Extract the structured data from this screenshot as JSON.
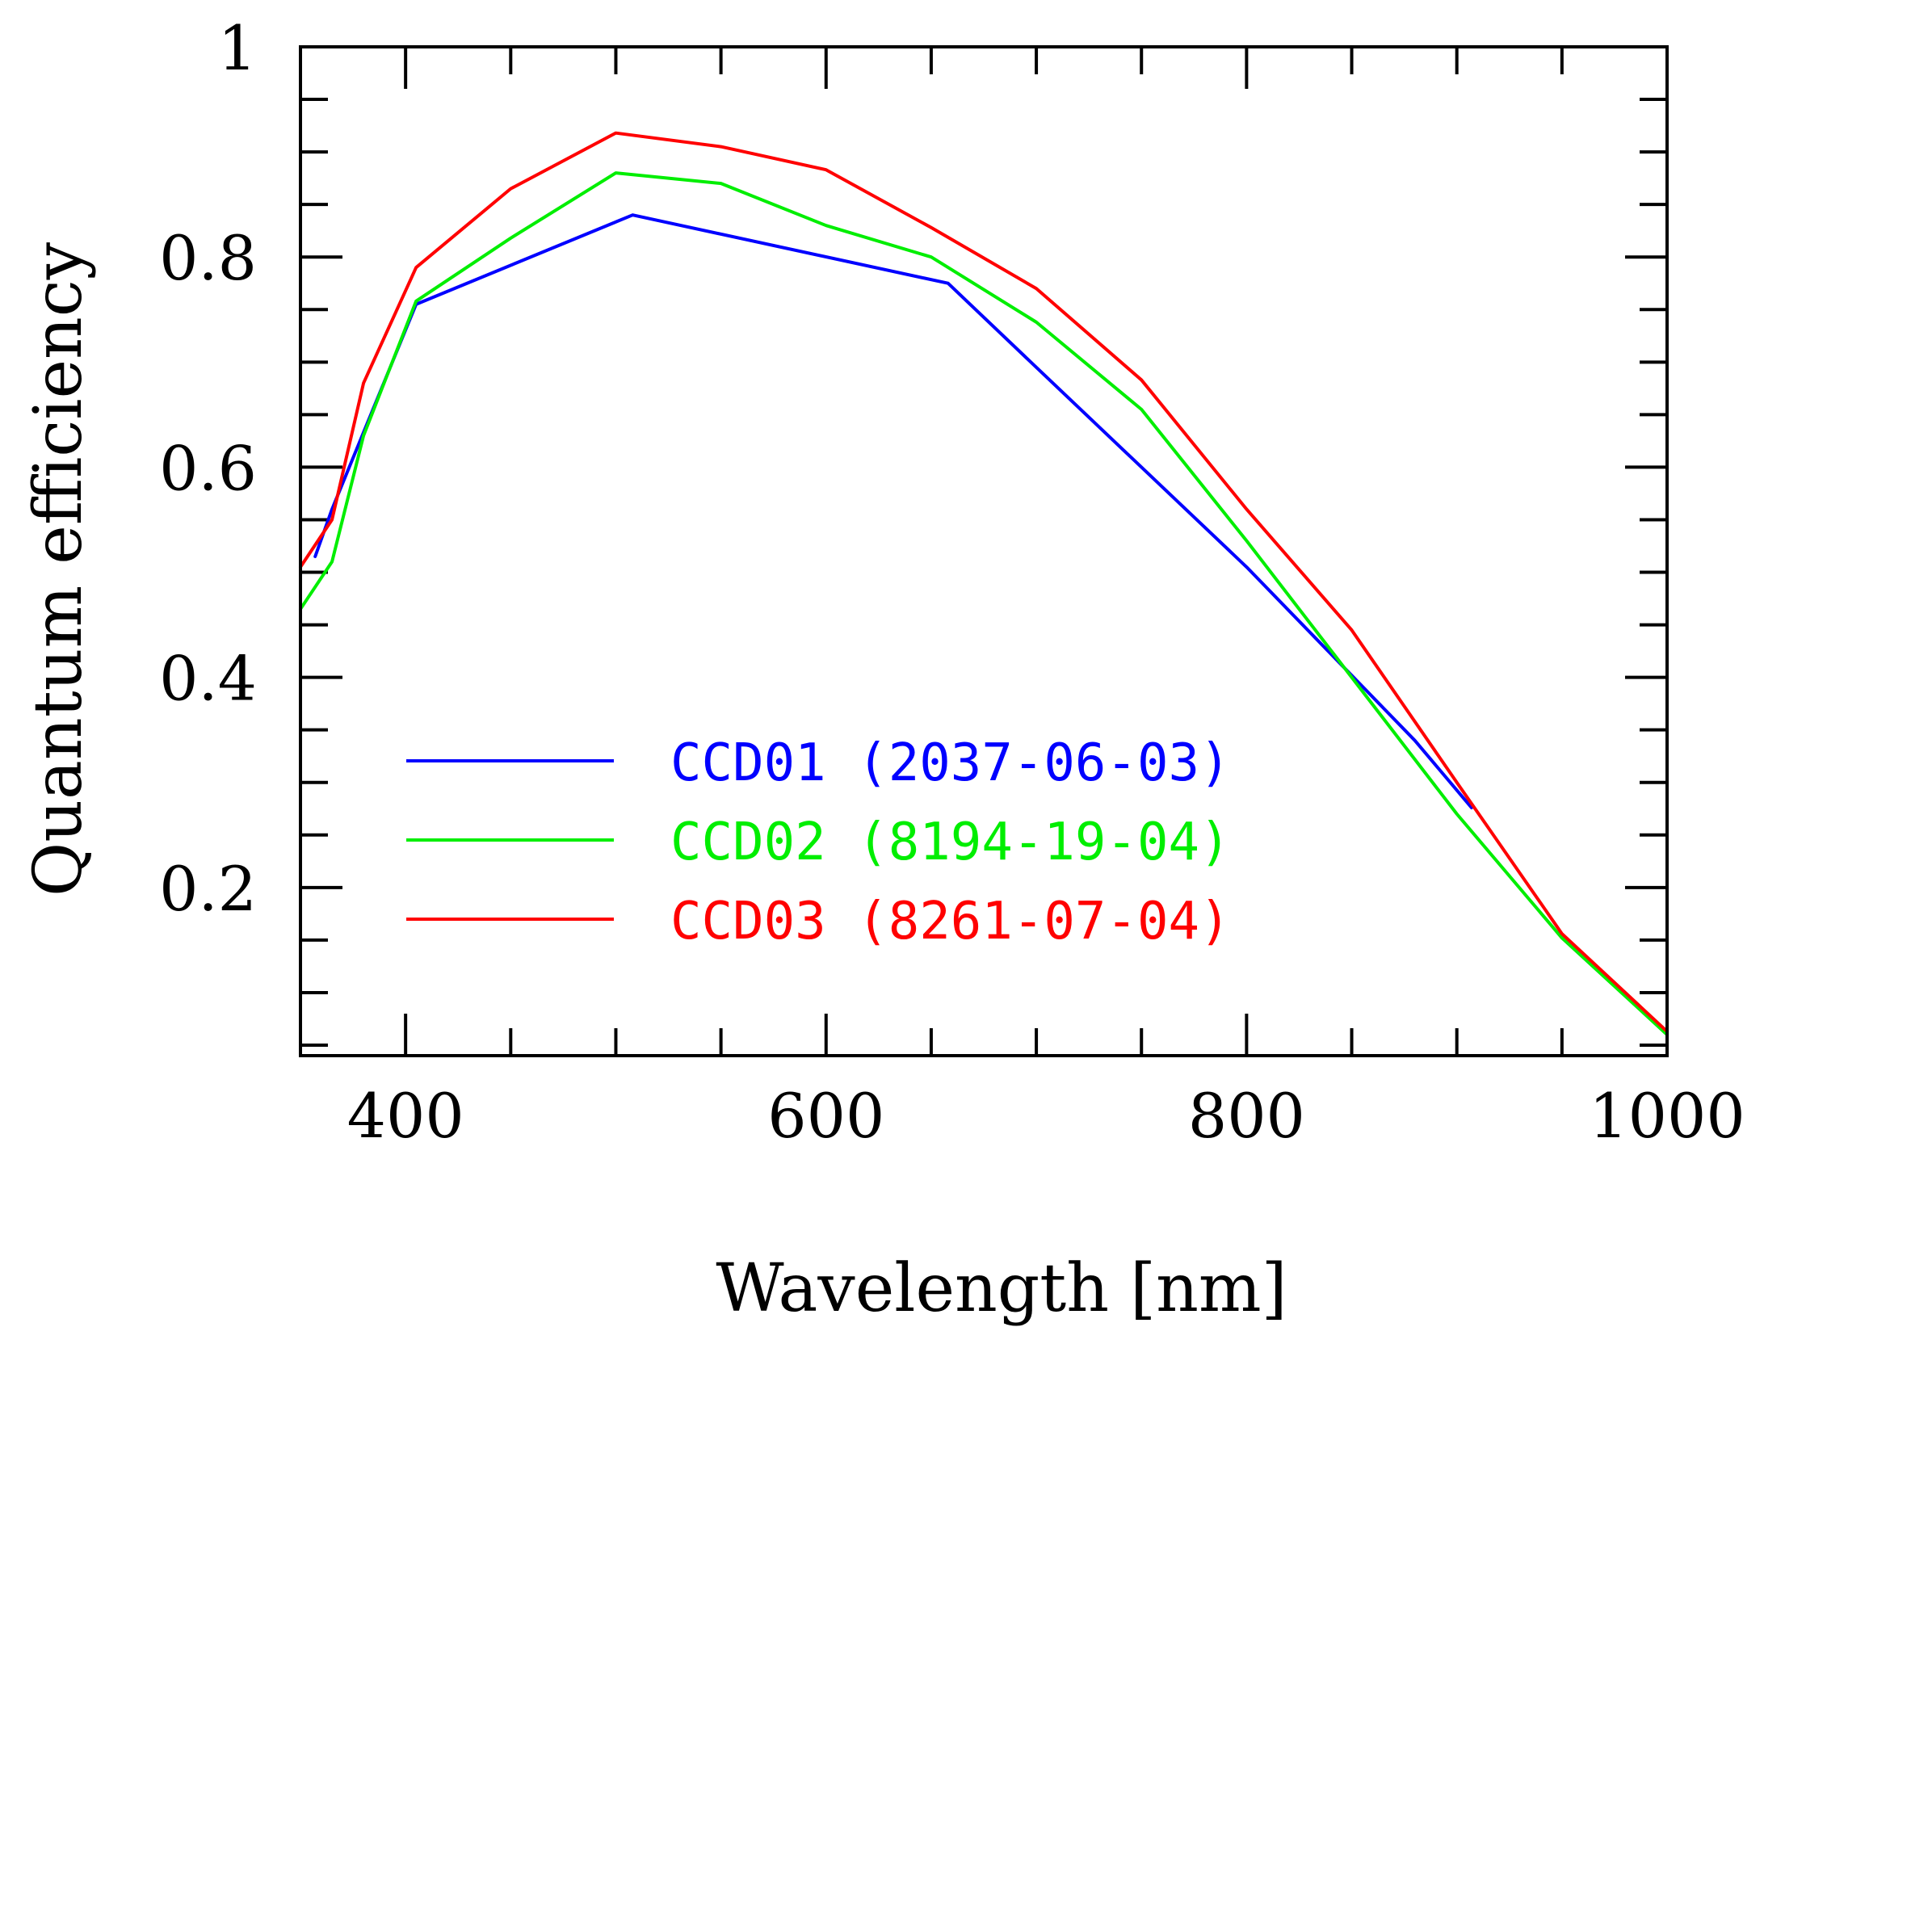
{
  "chart_data": {
    "type": "line",
    "title": "",
    "xlabel": "Wavelength [nm]",
    "ylabel": "Quantum efficiency",
    "xlim": [
      350,
      1000
    ],
    "ylim": [
      0.04,
      1.0
    ],
    "x_ticks": [
      400,
      600,
      800,
      1000
    ],
    "x_tick_labels": [
      "400",
      "600",
      "800",
      "1000"
    ],
    "x_minor_ticks": [
      350,
      400,
      450,
      500,
      550,
      600,
      650,
      700,
      750,
      800,
      850,
      900,
      950,
      1000
    ],
    "y_ticks": [
      0.2,
      0.4,
      0.6,
      0.8,
      1.0
    ],
    "y_tick_labels": [
      "0.2",
      "0.4",
      "0.6",
      "0.8",
      "1"
    ],
    "y_minor_ticks": [
      0.05,
      0.1,
      0.15,
      0.2,
      0.25,
      0.3,
      0.35,
      0.4,
      0.45,
      0.5,
      0.55,
      0.6,
      0.65,
      0.7,
      0.75,
      0.8,
      0.85,
      0.9,
      0.95
    ],
    "grid": false,
    "legend_position": "lower-left inside plot",
    "series": [
      {
        "name": "CCD01 (2037-06-03)",
        "color": "#0000ff",
        "x": [
          357,
          365,
          405,
          508,
          658,
          700,
          800,
          880,
          907
        ],
        "y": [
          0.515,
          0.56,
          0.755,
          0.84,
          0.775,
          0.695,
          0.505,
          0.34,
          0.276
        ]
      },
      {
        "name": "CCD02 (8194-19-04)",
        "color": "#00ee00",
        "x": [
          350,
          365,
          380,
          405,
          450,
          500,
          550,
          600,
          650,
          700,
          750,
          800,
          850,
          900,
          950,
          1000
        ],
        "y": [
          0.465,
          0.51,
          0.63,
          0.758,
          0.818,
          0.88,
          0.87,
          0.83,
          0.8,
          0.738,
          0.655,
          0.53,
          0.4,
          0.27,
          0.152,
          0.06
        ]
      },
      {
        "name": "CCD03 (8261-07-04)",
        "color": "#ff0000",
        "x": [
          350,
          365,
          380,
          405,
          450,
          500,
          550,
          600,
          650,
          700,
          750,
          800,
          850,
          900,
          950,
          1000
        ],
        "y": [
          0.505,
          0.55,
          0.68,
          0.79,
          0.865,
          0.918,
          0.905,
          0.883,
          0.828,
          0.77,
          0.683,
          0.56,
          0.445,
          0.3,
          0.156,
          0.063
        ]
      }
    ]
  }
}
